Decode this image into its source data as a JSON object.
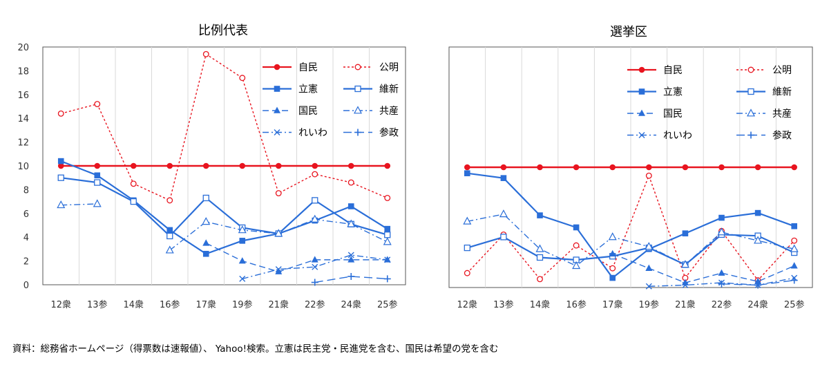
{
  "source_note": "資料：総務省ホームページ（得票数は速報値）、 Yahoo!検索。立憲は民主党・民進党を含む、国民は希望の党を含む",
  "colors": {
    "red": "#e8141f",
    "blue": "#2a6ed8"
  },
  "chart_data": [
    {
      "type": "line",
      "title": "比例代表",
      "categories": [
        "12衆",
        "13参",
        "14衆",
        "16参",
        "17衆",
        "19参",
        "21衆",
        "22参",
        "24衆",
        "25参"
      ],
      "ylim": [
        0,
        20
      ],
      "yticks": [
        0,
        2,
        4,
        6,
        8,
        10,
        12,
        14,
        16,
        18,
        20
      ],
      "grid": "vertical",
      "legend_position": "top-right",
      "series": [
        {
          "name": "自民",
          "color": "#e8141f",
          "dash": "solid",
          "marker": "dot",
          "values": [
            10,
            10,
            10,
            10,
            10,
            10,
            10,
            10,
            10,
            10
          ]
        },
        {
          "name": "公明",
          "color": "#e8141f",
          "dash": "dotted",
          "marker": "circle-open",
          "values": [
            14.4,
            15.2,
            8.5,
            7.1,
            19.4,
            17.4,
            7.7,
            9.3,
            8.6,
            7.3
          ]
        },
        {
          "name": "立憲",
          "color": "#2a6ed8",
          "dash": "solid",
          "marker": "square",
          "values": [
            10.4,
            9.2,
            7.1,
            4.6,
            2.6,
            3.7,
            4.3,
            5.4,
            6.6,
            4.7
          ]
        },
        {
          "name": "維新",
          "color": "#2a6ed8",
          "dash": "solid",
          "marker": "square-open",
          "values": [
            9.0,
            8.6,
            7.0,
            4.1,
            7.3,
            4.8,
            4.3,
            7.1,
            5.1,
            4.2
          ]
        },
        {
          "name": "国民",
          "color": "#2a6ed8",
          "dash": "dashed",
          "marker": "triangle",
          "values": [
            null,
            null,
            null,
            null,
            3.5,
            2.0,
            1.1,
            2.1,
            2.1,
            2.1
          ]
        },
        {
          "name": "共産",
          "color": "#2a6ed8",
          "dash": "dashdot",
          "marker": "triangle-open",
          "values": [
            6.7,
            6.8,
            null,
            2.9,
            5.3,
            4.6,
            4.3,
            5.5,
            5.1,
            3.6
          ]
        },
        {
          "name": "れいわ",
          "color": "#2a6ed8",
          "dash": "dashdot",
          "marker": "x",
          "values": [
            null,
            null,
            null,
            null,
            null,
            0.5,
            1.3,
            1.5,
            2.5,
            2.1
          ]
        },
        {
          "name": "参政",
          "color": "#2a6ed8",
          "dash": "longdash",
          "marker": "plus",
          "values": [
            null,
            null,
            null,
            null,
            null,
            null,
            null,
            0.2,
            0.7,
            0.5
          ]
        }
      ]
    },
    {
      "type": "line",
      "title": "選挙区",
      "categories": [
        "12衆",
        "13参",
        "14衆",
        "16参",
        "17衆",
        "19参",
        "21衆",
        "22参",
        "24衆",
        "25参"
      ],
      "ylim": [
        0,
        20
      ],
      "grid": "vertical",
      "legend_position": "top-right",
      "series": [
        {
          "name": "自民",
          "color": "#e8141f",
          "dash": "solid",
          "marker": "dot",
          "values": [
            10,
            10,
            10,
            10,
            10,
            10,
            10,
            10,
            10,
            10
          ]
        },
        {
          "name": "公明",
          "color": "#e8141f",
          "dash": "dotted",
          "marker": "circle-open",
          "values": [
            1.2,
            4.4,
            0.7,
            3.5,
            1.6,
            9.3,
            0.8,
            4.7,
            0.6,
            3.9
          ]
        },
        {
          "name": "立憲",
          "color": "#2a6ed8",
          "dash": "solid",
          "marker": "square",
          "values": [
            9.5,
            9.1,
            6.0,
            5.0,
            0.8,
            3.2,
            4.5,
            5.8,
            6.2,
            5.1
          ]
        },
        {
          "name": "維新",
          "color": "#2a6ed8",
          "dash": "solid",
          "marker": "square-open",
          "values": [
            3.3,
            4.2,
            2.5,
            2.3,
            2.6,
            3.3,
            1.9,
            4.4,
            4.3,
            2.9
          ]
        },
        {
          "name": "国民",
          "color": "#2a6ed8",
          "dash": "dashed",
          "marker": "triangle",
          "values": [
            null,
            null,
            null,
            null,
            2.8,
            1.6,
            0.4,
            1.2,
            0.5,
            1.8
          ]
        },
        {
          "name": "共産",
          "color": "#2a6ed8",
          "dash": "dashdot",
          "marker": "triangle-open",
          "values": [
            5.5,
            6.1,
            3.2,
            1.8,
            4.2,
            3.4,
            1.9,
            4.6,
            3.9,
            3.2
          ]
        },
        {
          "name": "れいわ",
          "color": "#2a6ed8",
          "dash": "dashdot",
          "marker": "x",
          "values": [
            null,
            null,
            null,
            null,
            null,
            0.1,
            0.2,
            0.4,
            0.2,
            0.8
          ]
        },
        {
          "name": "参政",
          "color": "#2a6ed8",
          "dash": "longdash",
          "marker": "plus",
          "values": [
            null,
            null,
            null,
            null,
            null,
            null,
            null,
            0.3,
            0.2,
            0.6
          ]
        }
      ]
    }
  ]
}
